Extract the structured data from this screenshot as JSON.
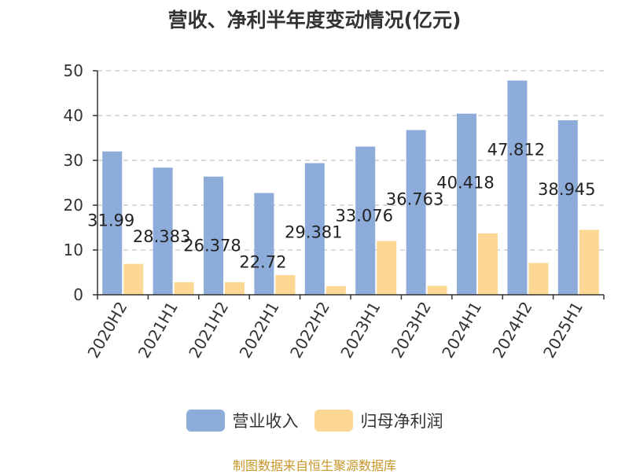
{
  "chart_data": {
    "type": "bar",
    "title": "营收、净利半年度变动情况(亿元)",
    "categories": [
      "2020H2",
      "2021H1",
      "2021H2",
      "2022H1",
      "2022H2",
      "2023H1",
      "2023H2",
      "2024H1",
      "2024H2",
      "2025H1"
    ],
    "series": [
      {
        "name": "营业收入",
        "color": "#8eacd9",
        "values": [
          31.99,
          28.383,
          26.378,
          22.72,
          29.381,
          33.076,
          36.763,
          40.418,
          47.812,
          38.945
        ],
        "labels": [
          "31.99",
          "28.383",
          "26.378",
          "22.72",
          "29.381",
          "33.076",
          "36.763",
          "40.418",
          "47.812",
          "38.945"
        ]
      },
      {
        "name": "归母净利润",
        "color": "#fdd894",
        "values": [
          6.9,
          2.8,
          2.8,
          4.4,
          1.9,
          12.0,
          2.0,
          13.7,
          7.1,
          14.5
        ]
      }
    ],
    "yticks": [
      0,
      10,
      20,
      30,
      40,
      50
    ],
    "ylim": [
      0,
      50
    ],
    "grid": "dashed horizontal",
    "legend_position": "bottom"
  },
  "footer": {
    "source": "制图数据来自恒生聚源数据库"
  }
}
